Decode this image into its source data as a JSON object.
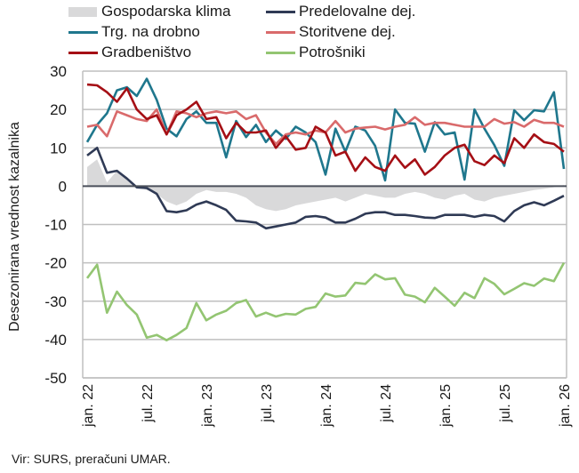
{
  "chart_data": {
    "type": "line",
    "title": "",
    "xlabel": "",
    "ylabel": "Desezonirana vrednost kazalnika",
    "ylim": [
      -50,
      30
    ],
    "yticks": [
      30,
      20,
      10,
      0,
      -10,
      -20,
      -30,
      -40,
      -50
    ],
    "grid": true,
    "legend_position": "top",
    "x_tick_labels": [
      "jan. 22",
      "jul. 22",
      "jan. 23",
      "jul. 23",
      "jan. 24",
      "jul. 24",
      "jan. 25",
      "jul. 25",
      "jan. 26"
    ],
    "x_tick_step_months": 6,
    "n_points": 49,
    "series": [
      {
        "name": "Gospodarska klima",
        "kind": "area",
        "color": "#d9d9da",
        "values": [
          5,
          7,
          1,
          4,
          2,
          0,
          -1,
          -2,
          -4,
          -5,
          -4,
          -2,
          -1,
          -1.5,
          -1.5,
          -2,
          -3,
          -5,
          -6,
          -6.5,
          -6,
          -5,
          -4.5,
          -4,
          -3.5,
          -3,
          -4,
          -3,
          -2,
          -2.5,
          -3,
          -3,
          -2,
          -1.5,
          -2,
          -3,
          -3.5,
          -2.5,
          -2,
          -3.5,
          -4,
          -3,
          -2.5,
          -2,
          -1.5,
          -1,
          -0.7,
          -0.3,
          0.3
        ]
      },
      {
        "name": "Predelovalne dej.",
        "kind": "line",
        "color": "#2f3a55",
        "values": [
          8,
          10,
          3.5,
          4,
          2,
          -0.3,
          -0.5,
          -2,
          -6.5,
          -6.8,
          -6.3,
          -4.8,
          -4,
          -5,
          -6.2,
          -9,
          -9.2,
          -9.5,
          -11,
          -10.5,
          -10,
          -9.5,
          -8,
          -7.8,
          -8.2,
          -9.5,
          -9.5,
          -8.5,
          -7.2,
          -6.8,
          -6.8,
          -7.5,
          -7.5,
          -7.8,
          -8.2,
          -8.3,
          -7.5,
          -7.5,
          -7.5,
          -8,
          -7.5,
          -7.8,
          -9.2,
          -6.5,
          -5,
          -4.2,
          -5,
          -3.8,
          -2.5
        ]
      },
      {
        "name": "Trg. na drobno",
        "kind": "line",
        "color": "#1f778d",
        "values": [
          11.5,
          16,
          19,
          25,
          25.8,
          23.5,
          28,
          22.5,
          15,
          13,
          17.5,
          19.5,
          16.5,
          16.5,
          7.5,
          17,
          12.8,
          16,
          11.5,
          14.5,
          12.3,
          15.5,
          14,
          11.5,
          3,
          15,
          9,
          15.5,
          14.5,
          10.5,
          1.5,
          20,
          16.5,
          16.3,
          9,
          16.7,
          13.5,
          14,
          1.7,
          20,
          15,
          10.7,
          5.3,
          19.8,
          17.2,
          19.8,
          19.5,
          24.5,
          4.5
        ]
      },
      {
        "name": "Storitvene dej.",
        "kind": "line",
        "color": "#d96a6b",
        "values": [
          15.5,
          16,
          13,
          19.5,
          18.5,
          17.5,
          17,
          20,
          13.5,
          19.5,
          19,
          18,
          19,
          19.5,
          19,
          19.5,
          17.5,
          18.5,
          14,
          11,
          13.5,
          14,
          13.5,
          14.5,
          14,
          17,
          14,
          15,
          15.3,
          15.5,
          14.8,
          15.5,
          16,
          18,
          16,
          16.5,
          16.5,
          16,
          15.5,
          15.5,
          15.5,
          17.5,
          16.3,
          16.7,
          15.5,
          17.3,
          16.5,
          16.5,
          15.5
        ]
      },
      {
        "name": "Gradbeništvo",
        "kind": "line",
        "color": "#a50f15",
        "values": [
          26.5,
          26.3,
          24.5,
          22,
          25.5,
          20,
          17.5,
          18.5,
          13.5,
          18.5,
          20,
          22,
          17.5,
          18,
          12.5,
          16.5,
          14,
          14,
          14.5,
          10,
          13,
          9.5,
          10,
          15.5,
          14,
          8,
          9,
          4,
          7.5,
          5,
          4,
          8,
          4.8,
          7,
          3,
          5,
          8,
          10,
          10.8,
          6.5,
          5.5,
          8,
          6,
          12.5,
          10,
          13.5,
          11.5,
          11,
          9
        ]
      },
      {
        "name": "Potrošniki",
        "kind": "line",
        "color": "#93c572",
        "values": [
          -24,
          -20.5,
          -33,
          -27.5,
          -31,
          -33.5,
          -39.5,
          -38.8,
          -40.2,
          -38.8,
          -37,
          -30.5,
          -35,
          -33.5,
          -32.5,
          -30.5,
          -29.7,
          -34,
          -33,
          -34,
          -33.3,
          -33.5,
          -32,
          -31.5,
          -28,
          -28.8,
          -28.5,
          -25.2,
          -25.5,
          -23,
          -24.3,
          -24,
          -28.3,
          -28.8,
          -30.3,
          -26.5,
          -28.8,
          -31.2,
          -27.8,
          -29.2,
          -24,
          -25.5,
          -28.2,
          -26.8,
          -25.3,
          -26,
          -24.1,
          -24.8,
          -20
        ]
      }
    ]
  },
  "legend": {
    "items": [
      "Gospodarska klima",
      "Predelovalne dej.",
      "Trg. na drobno",
      "Storitvene dej.",
      "Gradbeništvo",
      "Potrošniki"
    ]
  },
  "footer": {
    "source": "Vir: SURS, preračuni UMAR."
  }
}
